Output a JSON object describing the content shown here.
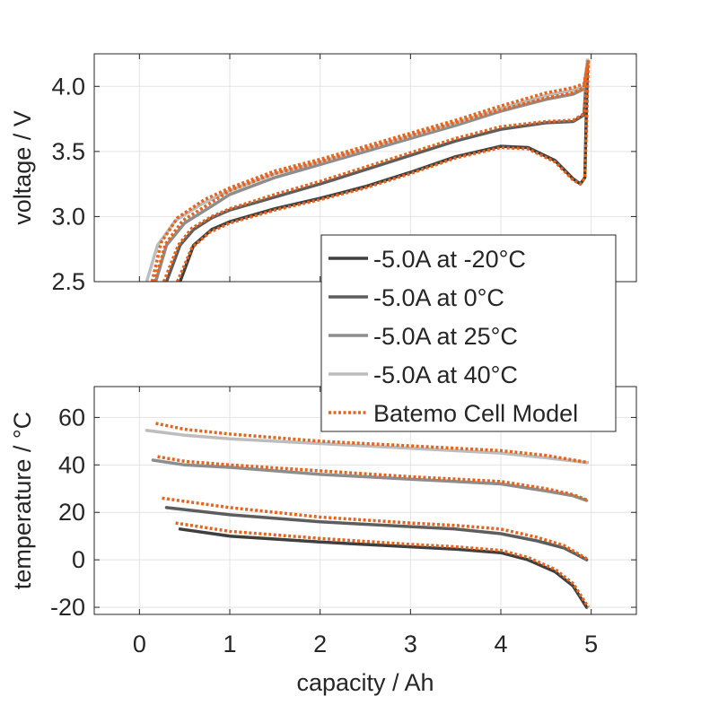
{
  "chart_data": [
    {
      "type": "line",
      "title": "",
      "xlabel": "",
      "ylabel": "voltage / V",
      "xlim": [
        -0.5,
        5.5
      ],
      "ylim": [
        2.5,
        4.25
      ],
      "xticks": [
        0,
        1,
        2,
        3,
        4,
        5
      ],
      "yticks": [
        2.5,
        3.0,
        3.5,
        4.0
      ],
      "ytick_labels": [
        "2.5",
        "3.0",
        "3.5",
        "4.0"
      ],
      "grid": true,
      "series": [
        {
          "name": "-5.0A at -20°C",
          "color": "#3f3f3f",
          "style": "solid",
          "x": [
            0.45,
            0.6,
            0.8,
            1.0,
            1.5,
            2.0,
            2.5,
            3.0,
            3.5,
            4.0,
            4.3,
            4.6,
            4.8,
            4.88,
            4.93,
            4.96
          ],
          "y": [
            2.5,
            2.78,
            2.9,
            2.96,
            3.06,
            3.14,
            3.23,
            3.34,
            3.46,
            3.54,
            3.53,
            3.43,
            3.29,
            3.25,
            3.3,
            4.2
          ]
        },
        {
          "name": "-5.0A at 0°C",
          "color": "#5d5d5d",
          "style": "solid",
          "x": [
            0.3,
            0.45,
            0.6,
            0.8,
            1.0,
            1.5,
            2.0,
            2.5,
            3.0,
            3.5,
            4.0,
            4.5,
            4.8,
            4.92,
            4.96
          ],
          "y": [
            2.5,
            2.78,
            2.9,
            2.99,
            3.05,
            3.15,
            3.25,
            3.36,
            3.47,
            3.58,
            3.67,
            3.72,
            3.73,
            3.78,
            4.2
          ]
        },
        {
          "name": "-5.0A at 25°C",
          "color": "#8d8d8d",
          "style": "solid",
          "x": [
            0.18,
            0.3,
            0.5,
            0.8,
            1.0,
            1.5,
            2.0,
            2.5,
            3.0,
            3.5,
            4.0,
            4.5,
            4.8,
            4.92,
            4.96
          ],
          "y": [
            2.5,
            2.78,
            2.95,
            3.08,
            3.17,
            3.3,
            3.4,
            3.5,
            3.6,
            3.7,
            3.81,
            3.9,
            3.94,
            3.98,
            4.2
          ]
        },
        {
          "name": "-5.0A at 40°C",
          "color": "#bdbdbd",
          "style": "solid",
          "x": [
            0.08,
            0.2,
            0.4,
            0.7,
            1.0,
            1.5,
            2.0,
            2.5,
            3.0,
            3.5,
            4.0,
            4.5,
            4.8,
            4.92,
            4.96
          ],
          "y": [
            2.5,
            2.78,
            2.97,
            3.1,
            3.2,
            3.33,
            3.42,
            3.52,
            3.62,
            3.72,
            3.83,
            3.93,
            3.97,
            4.0,
            4.2
          ]
        },
        {
          "name": "Batemo Cell Model",
          "color": "#e8631c",
          "style": "dotted",
          "curves": [
            {
              "x": [
                0.42,
                0.58,
                0.78,
                1.0,
                1.5,
                2.0,
                2.5,
                3.0,
                3.5,
                4.0,
                4.3,
                4.6,
                4.8,
                4.88,
                4.93,
                4.97
              ],
              "y": [
                2.5,
                2.76,
                2.88,
                2.95,
                3.05,
                3.13,
                3.22,
                3.33,
                3.45,
                3.53,
                3.52,
                3.42,
                3.28,
                3.25,
                3.3,
                4.2
              ]
            },
            {
              "x": [
                0.27,
                0.43,
                0.58,
                0.8,
                1.0,
                1.5,
                2.0,
                2.5,
                3.0,
                3.5,
                4.0,
                4.5,
                4.8,
                4.92,
                4.97
              ],
              "y": [
                2.5,
                2.78,
                2.91,
                3.0,
                3.06,
                3.17,
                3.27,
                3.38,
                3.49,
                3.6,
                3.69,
                3.73,
                3.74,
                3.79,
                4.2
              ]
            },
            {
              "x": [
                0.17,
                0.29,
                0.48,
                0.8,
                1.0,
                1.5,
                2.0,
                2.5,
                3.0,
                3.5,
                4.0,
                4.5,
                4.8,
                4.92,
                4.97
              ],
              "y": [
                2.5,
                2.79,
                2.97,
                3.11,
                3.2,
                3.33,
                3.42,
                3.52,
                3.62,
                3.72,
                3.82,
                3.91,
                3.95,
                3.99,
                4.2
              ]
            },
            {
              "x": [
                0.14,
                0.24,
                0.42,
                0.72,
                1.0,
                1.5,
                2.0,
                2.5,
                3.0,
                3.5,
                4.0,
                4.5,
                4.8,
                4.92,
                4.97
              ],
              "y": [
                2.5,
                2.8,
                2.99,
                3.13,
                3.22,
                3.35,
                3.44,
                3.54,
                3.64,
                3.74,
                3.85,
                3.95,
                3.99,
                4.02,
                4.2
              ]
            }
          ]
        }
      ]
    },
    {
      "type": "line",
      "title": "",
      "xlabel": "capacity / Ah",
      "ylabel": "temperature / °C",
      "xlim": [
        -0.5,
        5.5
      ],
      "ylim": [
        -23,
        73
      ],
      "xticks": [
        0,
        1,
        2,
        3,
        4,
        5
      ],
      "xtick_labels": [
        "0",
        "1",
        "2",
        "3",
        "4",
        "5"
      ],
      "yticks": [
        -20,
        0,
        20,
        40,
        60
      ],
      "ytick_labels": [
        "-20",
        "0",
        "20",
        "40",
        "60"
      ],
      "grid": true,
      "series": [
        {
          "name": "-5.0A at -20°C",
          "color": "#3f3f3f",
          "style": "solid",
          "x": [
            0.45,
            1.0,
            2.0,
            3.0,
            3.5,
            4.0,
            4.3,
            4.6,
            4.8,
            4.95
          ],
          "y": [
            13,
            10,
            7.5,
            5.5,
            4.5,
            3,
            0,
            -5,
            -11,
            -20
          ]
        },
        {
          "name": "-5.0A at 0°C",
          "color": "#5d5d5d",
          "style": "solid",
          "x": [
            0.3,
            1.0,
            2.0,
            3.0,
            3.5,
            4.0,
            4.4,
            4.7,
            4.95
          ],
          "y": [
            22,
            19,
            16,
            14,
            13,
            11,
            8,
            5,
            0
          ]
        },
        {
          "name": "-5.0A at 25°C",
          "color": "#8d8d8d",
          "style": "solid",
          "x": [
            0.15,
            0.5,
            1.0,
            2.0,
            3.0,
            4.0,
            4.5,
            4.8,
            4.95
          ],
          "y": [
            42,
            40,
            39,
            36,
            34,
            32,
            29,
            27,
            25
          ]
        },
        {
          "name": "-5.0A at 40°C",
          "color": "#bdbdbd",
          "style": "solid",
          "x": [
            0.08,
            0.5,
            1.0,
            2.0,
            3.0,
            4.0,
            4.5,
            4.95
          ],
          "y": [
            54.5,
            52.5,
            51,
            49,
            47,
            45,
            43,
            41
          ]
        },
        {
          "name": "Batemo Cell Model",
          "color": "#e8631c",
          "style": "dotted",
          "curves": [
            {
              "x": [
                0.4,
                1.0,
                2.0,
                3.0,
                3.5,
                4.0,
                4.3,
                4.6,
                4.8,
                4.97
              ],
              "y": [
                15.5,
                12,
                9,
                6.5,
                5.5,
                4,
                1,
                -4,
                -10,
                -20
              ]
            },
            {
              "x": [
                0.25,
                1.0,
                2.0,
                3.0,
                3.5,
                4.0,
                4.4,
                4.7,
                4.97
              ],
              "y": [
                26,
                22,
                18,
                15.5,
                14.5,
                13,
                9.5,
                6,
                0
              ]
            },
            {
              "x": [
                0.2,
                0.5,
                1.0,
                2.0,
                3.0,
                4.0,
                4.5,
                4.8,
                4.97
              ],
              "y": [
                43.5,
                41.5,
                40,
                37.5,
                35,
                33,
                30,
                27.5,
                25
              ]
            },
            {
              "x": [
                0.18,
                0.5,
                1.0,
                2.0,
                3.0,
                4.0,
                4.5,
                4.97
              ],
              "y": [
                57.5,
                55,
                53,
                50,
                48,
                46,
                44,
                41
              ]
            }
          ]
        }
      ]
    }
  ],
  "legend": {
    "placement": "center-right",
    "entries": [
      {
        "label": "-5.0A at -20°C",
        "color": "#3f3f3f",
        "style": "solid"
      },
      {
        "label": "-5.0A at 0°C",
        "color": "#5d5d5d",
        "style": "solid"
      },
      {
        "label": "-5.0A at 25°C",
        "color": "#8d8d8d",
        "style": "solid"
      },
      {
        "label": "-5.0A at 40°C",
        "color": "#bdbdbd",
        "style": "solid"
      },
      {
        "label": "Batemo Cell Model",
        "color": "#e8631c",
        "style": "dotted"
      }
    ]
  }
}
